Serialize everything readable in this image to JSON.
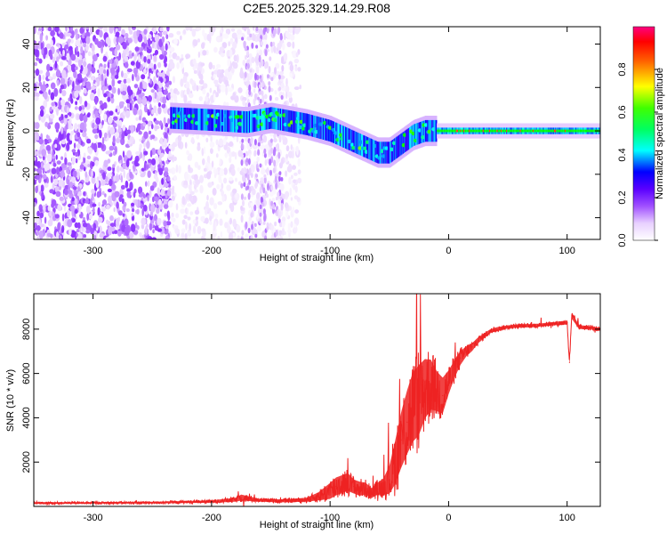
{
  "figure": {
    "title": "C2E5.2025.329.14.29.R08"
  },
  "chart_data": [
    {
      "type": "heatmap",
      "name": "spectrogram",
      "title": "C2E5.2025.329.14.29.R08",
      "xlabel": "Height of straight line (km)",
      "ylabel": "Frequency (Hz)",
      "xlim": [
        -350,
        128
      ],
      "ylim": [
        -50,
        48
      ],
      "xticks": [
        -300,
        -200,
        -100,
        0,
        100
      ],
      "yticks": [
        -40,
        -20,
        0,
        20,
        40
      ],
      "xtick_labels": [
        "-300",
        "-200",
        "-100",
        "0",
        "100"
      ],
      "ytick_labels": [
        "-40",
        "-20",
        "0",
        "20",
        "40"
      ],
      "colorbar": {
        "label": "Normalized spectral amplitude",
        "range": [
          0,
          1
        ],
        "ticks": [
          0.0,
          0.2,
          0.4,
          0.6,
          0.8
        ],
        "tick_labels": [
          "0.0",
          "0.2",
          "0.4",
          "0.6",
          "0.8"
        ],
        "colormap": [
          "#ffffff",
          "#e6ccff",
          "#a050ff",
          "#6a00ff",
          "#0000ff",
          "#00ffff",
          "#00ff00",
          "#ffff00",
          "#ff8000",
          "#ff0000",
          "#ff0080"
        ]
      },
      "regions": [
        {
          "desc": "broadband noise",
          "x": [
            -350,
            -235
          ],
          "amplitude": 0.15
        },
        {
          "desc": "broadband noise",
          "x": [
            -235,
            -125
          ],
          "amplitude": 0.05
        },
        {
          "desc": "carrier signal",
          "x": [
            -235,
            128
          ],
          "amplitude": 0.5
        }
      ],
      "carrier_track": {
        "x": [
          -235,
          -200,
          -170,
          -150,
          -120,
          -100,
          -80,
          -60,
          -50,
          -40,
          -30,
          -20,
          -10,
          0,
          20,
          50,
          80,
          100,
          128
        ],
        "y": [
          6,
          5,
          4,
          6,
          3,
          0,
          -5,
          -10,
          -10,
          -6,
          -2,
          0,
          0,
          0,
          0,
          0,
          0,
          0,
          0
        ]
      }
    },
    {
      "type": "line",
      "name": "snr",
      "xlabel": "Height of straight line (km)",
      "ylabel": "SNR (10 * v/v)",
      "xlim": [
        -350,
        128
      ],
      "ylim": [
        0,
        9600
      ],
      "xticks": [
        -300,
        -200,
        -100,
        0,
        100
      ],
      "yticks": [
        2000,
        4000,
        6000,
        8000
      ],
      "xtick_labels": [
        "-300",
        "-200",
        "-100",
        "0",
        "100"
      ],
      "ytick_labels": [
        "2000",
        "4000",
        "6000",
        "8000"
      ],
      "series": [
        {
          "name": "SNR",
          "color": "#ee2222",
          "x": [
            -350,
            -300,
            -250,
            -200,
            -180,
            -175,
            -160,
            -140,
            -120,
            -110,
            -100,
            -95,
            -90,
            -85,
            -80,
            -75,
            -70,
            -65,
            -60,
            -55,
            -50,
            -45,
            -40,
            -35,
            -30,
            -25,
            -20,
            -15,
            -10,
            -5,
            0,
            5,
            10,
            15,
            20,
            25,
            30,
            35,
            40,
            50,
            60,
            70,
            80,
            90,
            100,
            102,
            104,
            110,
            120,
            128
          ],
          "y": [
            150,
            160,
            170,
            220,
            300,
            400,
            280,
            250,
            300,
            450,
            700,
            900,
            1000,
            1100,
            900,
            800,
            800,
            600,
            800,
            900,
            1200,
            2000,
            3000,
            3800,
            4500,
            4800,
            5300,
            5500,
            5200,
            5000,
            5600,
            6200,
            6700,
            7000,
            7200,
            7500,
            7700,
            7900,
            8000,
            8100,
            8150,
            8150,
            8200,
            8250,
            8300,
            6500,
            8600,
            8100,
            8050,
            8000
          ],
          "noise_band": [
            80,
            80,
            90,
            120,
            200,
            300,
            150,
            150,
            200,
            400,
            800,
            900,
            900,
            900,
            700,
            700,
            600,
            500,
            600,
            800,
            1400,
            2200,
            2800,
            3200,
            3500,
            3500,
            3000,
            2500,
            2000,
            1800,
            1200,
            900,
            700,
            500,
            400,
            300,
            250,
            200,
            180,
            160,
            160,
            160,
            160,
            170,
            200,
            400,
            300,
            200,
            160,
            160
          ]
        }
      ]
    }
  ]
}
